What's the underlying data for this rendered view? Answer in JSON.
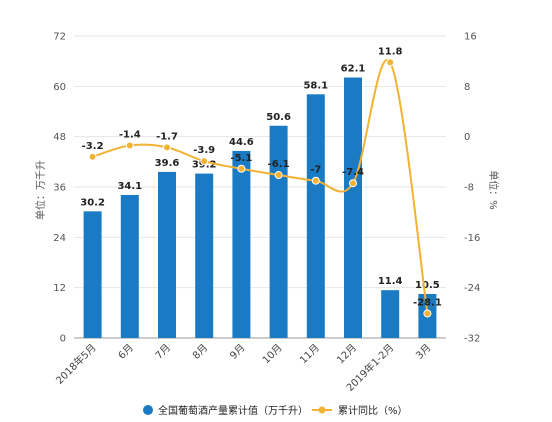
{
  "chart_data": {
    "type": "bar",
    "categories": [
      "2018年5月",
      "6月",
      "7月",
      "8月",
      "9月",
      "10月",
      "11月",
      "12月",
      "2019年1-2月",
      "3月"
    ],
    "series": [
      {
        "name": "全国葡萄酒产量累计值（万千升）",
        "type": "bar",
        "axis": "left",
        "color": "#1a7bc4",
        "values": [
          30.2,
          34.1,
          39.6,
          39.2,
          44.6,
          50.6,
          58.1,
          62.1,
          11.4,
          10.5
        ]
      },
      {
        "name": "累计同比（%）",
        "type": "line",
        "axis": "right",
        "color": "#f2b233",
        "values": [
          -3.2,
          -1.4,
          -1.7,
          -3.9,
          -5.1,
          -6.1,
          -7,
          -7.4,
          11.8,
          -28.1
        ]
      }
    ],
    "bar_labels": [
      "30.2",
      "34.1",
      "39.6",
      "39.2",
      "44.6",
      "50.6",
      "58.1",
      "62.1",
      "11.4",
      "10.5"
    ],
    "line_labels": [
      "-3.2",
      "-1.4",
      "-1.7",
      "-3.9",
      "-5.1",
      "-6.1",
      "-7",
      "-7.4",
      "11.8",
      "-28.1"
    ],
    "y_left": {
      "label": "单位：万千升",
      "ylim": [
        0,
        72
      ],
      "ticks": [
        0,
        12,
        24,
        36,
        48,
        60,
        72
      ],
      "tick_labels": [
        "0",
        "12",
        "24",
        "36",
        "48",
        "60",
        "72"
      ]
    },
    "y_right": {
      "label": "单位：%",
      "ylim": [
        -32,
        16
      ],
      "ticks": [
        -32,
        -24,
        -16,
        -8,
        0,
        8,
        16
      ],
      "tick_labels": [
        "-32",
        "-24",
        "-16",
        "-8",
        "0",
        "8",
        "16"
      ]
    },
    "grid": true,
    "legend_position": "bottom"
  }
}
